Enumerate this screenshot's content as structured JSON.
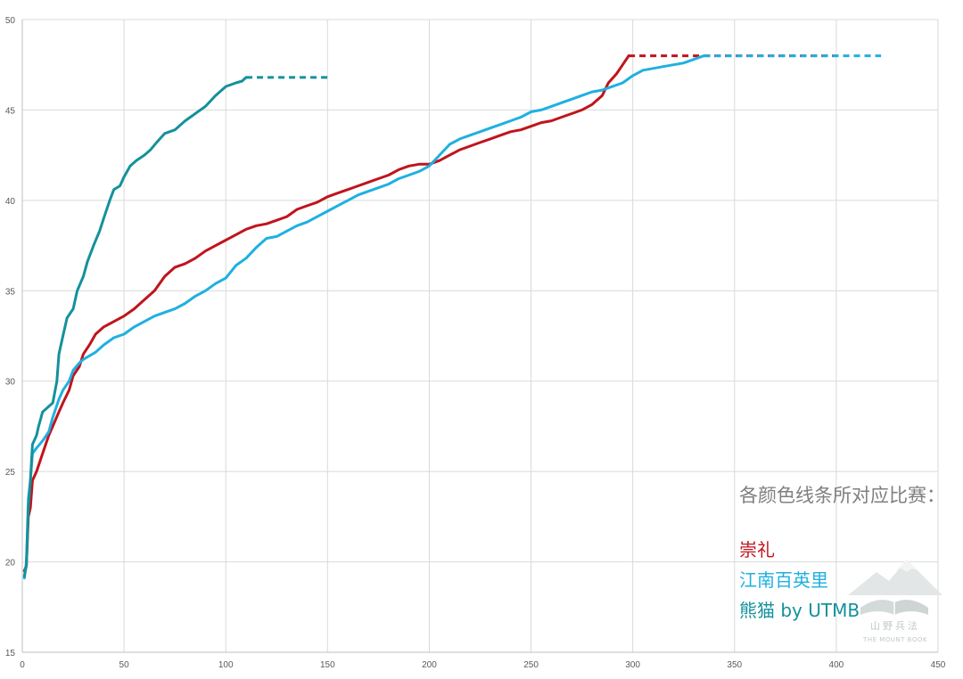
{
  "chart_data": {
    "type": "line",
    "title": "",
    "xlabel": "",
    "ylabel": "",
    "xlim": [
      0,
      450
    ],
    "ylim": [
      15,
      50
    ],
    "x_ticks": [
      0,
      50,
      100,
      150,
      200,
      250,
      300,
      350,
      400,
      450
    ],
    "y_ticks": [
      15,
      20,
      25,
      30,
      35,
      40,
      45,
      50
    ],
    "grid": true,
    "legend_title": "各颜色线条所对应比赛：",
    "legend_position": "bottom-right",
    "series": [
      {
        "name": "崇礼",
        "color": "#c0141c",
        "points": [
          [
            1,
            19.5
          ],
          [
            2,
            19.8
          ],
          [
            3,
            22.5
          ],
          [
            4,
            23
          ],
          [
            5,
            24.5
          ],
          [
            7,
            25
          ],
          [
            10,
            26
          ],
          [
            13,
            27
          ],
          [
            15,
            27.5
          ],
          [
            18,
            28.3
          ],
          [
            20,
            28.8
          ],
          [
            23,
            29.5
          ],
          [
            25,
            30.3
          ],
          [
            28,
            30.8
          ],
          [
            30,
            31.5
          ],
          [
            33,
            32
          ],
          [
            36,
            32.6
          ],
          [
            40,
            33
          ],
          [
            45,
            33.3
          ],
          [
            50,
            33.6
          ],
          [
            55,
            34
          ],
          [
            60,
            34.5
          ],
          [
            65,
            35
          ],
          [
            70,
            35.8
          ],
          [
            75,
            36.3
          ],
          [
            80,
            36.5
          ],
          [
            85,
            36.8
          ],
          [
            90,
            37.2
          ],
          [
            95,
            37.5
          ],
          [
            100,
            37.8
          ],
          [
            105,
            38.1
          ],
          [
            110,
            38.4
          ],
          [
            115,
            38.6
          ],
          [
            120,
            38.7
          ],
          [
            125,
            38.9
          ],
          [
            130,
            39.1
          ],
          [
            135,
            39.5
          ],
          [
            140,
            39.7
          ],
          [
            145,
            39.9
          ],
          [
            150,
            40.2
          ],
          [
            155,
            40.4
          ],
          [
            160,
            40.6
          ],
          [
            165,
            40.8
          ],
          [
            170,
            41.0
          ],
          [
            175,
            41.2
          ],
          [
            180,
            41.4
          ],
          [
            185,
            41.7
          ],
          [
            190,
            41.9
          ],
          [
            195,
            42.0
          ],
          [
            200,
            42.0
          ],
          [
            205,
            42.2
          ],
          [
            210,
            42.5
          ],
          [
            215,
            42.8
          ],
          [
            220,
            43.0
          ],
          [
            225,
            43.2
          ],
          [
            230,
            43.4
          ],
          [
            235,
            43.6
          ],
          [
            240,
            43.8
          ],
          [
            245,
            43.9
          ],
          [
            250,
            44.1
          ],
          [
            255,
            44.3
          ],
          [
            260,
            44.4
          ],
          [
            265,
            44.6
          ],
          [
            270,
            44.8
          ],
          [
            275,
            45.0
          ],
          [
            280,
            45.3
          ],
          [
            285,
            45.8
          ],
          [
            288,
            46.5
          ],
          [
            292,
            47.0
          ],
          [
            295,
            47.5
          ],
          [
            298,
            48.0
          ]
        ],
        "dashed_to": [
          400,
          48.0
        ]
      },
      {
        "name": "江南百英里",
        "color": "#1fb0e0",
        "points": [
          [
            1,
            19.1
          ],
          [
            2,
            20
          ],
          [
            3,
            23.5
          ],
          [
            4,
            24.5
          ],
          [
            5,
            26
          ],
          [
            7,
            26.3
          ],
          [
            10,
            26.7
          ],
          [
            13,
            27.2
          ],
          [
            15,
            28
          ],
          [
            18,
            29
          ],
          [
            20,
            29.5
          ],
          [
            23,
            30
          ],
          [
            25,
            30.6
          ],
          [
            28,
            31
          ],
          [
            30,
            31.2
          ],
          [
            33,
            31.4
          ],
          [
            36,
            31.6
          ],
          [
            40,
            32
          ],
          [
            45,
            32.4
          ],
          [
            50,
            32.6
          ],
          [
            55,
            33
          ],
          [
            60,
            33.3
          ],
          [
            65,
            33.6
          ],
          [
            70,
            33.8
          ],
          [
            75,
            34.0
          ],
          [
            80,
            34.3
          ],
          [
            85,
            34.7
          ],
          [
            90,
            35.0
          ],
          [
            95,
            35.4
          ],
          [
            100,
            35.7
          ],
          [
            105,
            36.4
          ],
          [
            110,
            36.8
          ],
          [
            115,
            37.4
          ],
          [
            120,
            37.9
          ],
          [
            125,
            38.0
          ],
          [
            130,
            38.3
          ],
          [
            135,
            38.6
          ],
          [
            140,
            38.8
          ],
          [
            145,
            39.1
          ],
          [
            150,
            39.4
          ],
          [
            155,
            39.7
          ],
          [
            160,
            40.0
          ],
          [
            165,
            40.3
          ],
          [
            170,
            40.5
          ],
          [
            175,
            40.7
          ],
          [
            180,
            40.9
          ],
          [
            185,
            41.2
          ],
          [
            190,
            41.4
          ],
          [
            195,
            41.6
          ],
          [
            200,
            41.9
          ],
          [
            205,
            42.5
          ],
          [
            210,
            43.1
          ],
          [
            215,
            43.4
          ],
          [
            220,
            43.6
          ],
          [
            225,
            43.8
          ],
          [
            230,
            44.0
          ],
          [
            235,
            44.2
          ],
          [
            240,
            44.4
          ],
          [
            245,
            44.6
          ],
          [
            250,
            44.9
          ],
          [
            255,
            45.0
          ],
          [
            260,
            45.2
          ],
          [
            265,
            45.4
          ],
          [
            270,
            45.6
          ],
          [
            275,
            45.8
          ],
          [
            280,
            46.0
          ],
          [
            285,
            46.1
          ],
          [
            290,
            46.3
          ],
          [
            295,
            46.5
          ],
          [
            300,
            46.9
          ],
          [
            305,
            47.2
          ],
          [
            310,
            47.3
          ],
          [
            315,
            47.4
          ],
          [
            320,
            47.5
          ],
          [
            325,
            47.6
          ],
          [
            330,
            47.8
          ],
          [
            335,
            48.0
          ]
        ],
        "dashed_to": [
          422,
          48.0
        ]
      },
      {
        "name": "熊猫 by UTMB",
        "color": "#14919b",
        "points": [
          [
            1,
            19.2
          ],
          [
            2,
            19.8
          ],
          [
            3,
            23
          ],
          [
            4,
            24.5
          ],
          [
            5,
            26.5
          ],
          [
            7,
            27
          ],
          [
            8,
            27.5
          ],
          [
            10,
            28.3
          ],
          [
            13,
            28.6
          ],
          [
            15,
            28.8
          ],
          [
            17,
            30
          ],
          [
            18,
            31.5
          ],
          [
            20,
            32.5
          ],
          [
            22,
            33.5
          ],
          [
            25,
            34
          ],
          [
            27,
            35
          ],
          [
            30,
            35.8
          ],
          [
            32,
            36.6
          ],
          [
            35,
            37.5
          ],
          [
            38,
            38.3
          ],
          [
            40,
            39
          ],
          [
            43,
            40
          ],
          [
            45,
            40.6
          ],
          [
            48,
            40.8
          ],
          [
            50,
            41.3
          ],
          [
            53,
            41.9
          ],
          [
            56,
            42.2
          ],
          [
            60,
            42.5
          ],
          [
            63,
            42.8
          ],
          [
            66,
            43.2
          ],
          [
            70,
            43.7
          ],
          [
            75,
            43.9
          ],
          [
            80,
            44.4
          ],
          [
            85,
            44.8
          ],
          [
            90,
            45.2
          ],
          [
            95,
            45.8
          ],
          [
            100,
            46.3
          ],
          [
            105,
            46.5
          ],
          [
            108,
            46.6
          ],
          [
            110,
            46.8
          ]
        ],
        "dashed_to": [
          152,
          46.8
        ]
      }
    ]
  },
  "watermark": {
    "chinese_text": "山野兵法",
    "english_text": "THE MOUNT BOOK"
  },
  "colors": {
    "grid": "#d9d9d9",
    "axis": "#bfbfbf",
    "tick_label": "#595959",
    "legend_title": "#7f7f7f"
  }
}
